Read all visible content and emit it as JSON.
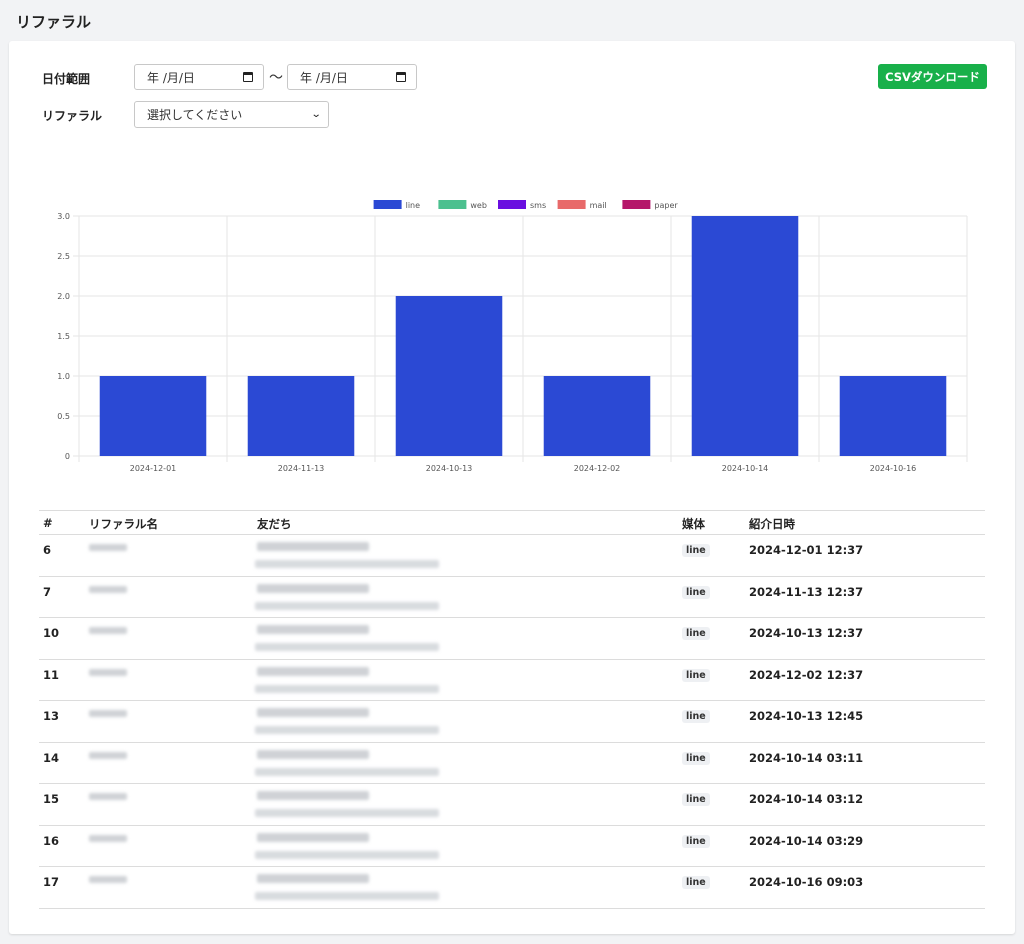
{
  "page": {
    "title": "リファラル"
  },
  "filters": {
    "date_label": "日付範囲",
    "date_from_placeholder": "年 /月/日",
    "date_to_placeholder": "年 /月/日",
    "separator": "〜",
    "referral_label": "リファラル",
    "referral_select_value": "選択してください"
  },
  "actions": {
    "csv_button": "CSVダウンロード"
  },
  "chart_data": {
    "type": "bar",
    "categories": [
      "2024-12-01",
      "2024-11-13",
      "2024-10-13",
      "2024-12-02",
      "2024-10-14",
      "2024-10-16"
    ],
    "series": [
      {
        "name": "line",
        "color": "#2b49d4",
        "values": [
          1,
          1,
          2,
          1,
          3,
          1
        ]
      },
      {
        "name": "web",
        "color": "#4cc08f",
        "values": [
          0,
          0,
          0,
          0,
          0,
          0
        ]
      },
      {
        "name": "sms",
        "color": "#6a0fe0",
        "values": [
          0,
          0,
          0,
          0,
          0,
          0
        ]
      },
      {
        "name": "mail",
        "color": "#e86a6a",
        "values": [
          0,
          0,
          0,
          0,
          0,
          0
        ]
      },
      {
        "name": "paper",
        "color": "#b5176a",
        "values": [
          0,
          0,
          0,
          0,
          0,
          0
        ]
      }
    ],
    "yticks": [
      "0",
      "0.5",
      "1.0",
      "1.5",
      "2.0",
      "2.5",
      "3.0"
    ],
    "ylim": [
      0,
      3
    ],
    "grid": true,
    "legend": "top"
  },
  "table": {
    "headers": {
      "id": "#",
      "name": "リファラル名",
      "friend": "友だち",
      "medium": "媒体",
      "date": "紹介日時"
    },
    "rows": [
      {
        "id": "6",
        "medium": "line",
        "date": "2024-12-01 12:37"
      },
      {
        "id": "7",
        "medium": "line",
        "date": "2024-11-13 12:37"
      },
      {
        "id": "10",
        "medium": "line",
        "date": "2024-10-13 12:37"
      },
      {
        "id": "11",
        "medium": "line",
        "date": "2024-12-02 12:37"
      },
      {
        "id": "13",
        "medium": "line",
        "date": "2024-10-13 12:45"
      },
      {
        "id": "14",
        "medium": "line",
        "date": "2024-10-14 03:11"
      },
      {
        "id": "15",
        "medium": "line",
        "date": "2024-10-14 03:12"
      },
      {
        "id": "16",
        "medium": "line",
        "date": "2024-10-14 03:29"
      },
      {
        "id": "17",
        "medium": "line",
        "date": "2024-10-16 09:03"
      }
    ]
  }
}
